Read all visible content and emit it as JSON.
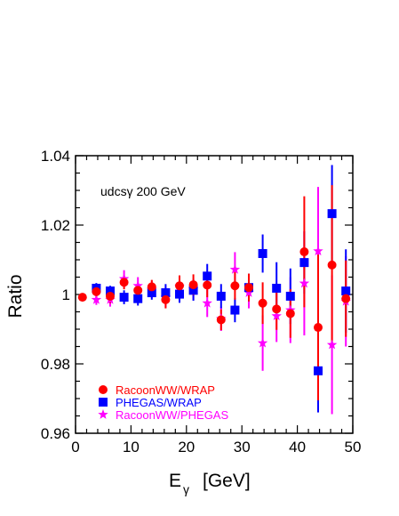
{
  "chart_data": {
    "type": "scatter",
    "title": "",
    "annotation": "udcsγ  200 GeV",
    "xlabel": {
      "main": "E",
      "sub": "γ",
      "unit": "[GeV]"
    },
    "ylabel": "Ratio",
    "xlim": [
      0,
      50
    ],
    "ylim": [
      0.96,
      1.04
    ],
    "xticks": [
      0,
      10,
      20,
      30,
      40,
      50
    ],
    "xtick_labels": [
      "0",
      "10",
      "20",
      "30",
      "40",
      "50"
    ],
    "yticks": [
      0.96,
      0.98,
      1.0,
      1.02,
      1.04
    ],
    "ytick_labels": [
      "0.96",
      "0.98",
      "1",
      "1.02",
      "1.04"
    ],
    "grid": false,
    "legend_position": "bottom-left",
    "series": [
      {
        "name": "RacoonWW/WRAP",
        "marker": "circle",
        "color": "#ff0000",
        "x": [
          1.25,
          3.75,
          6.25,
          8.75,
          11.25,
          13.75,
          16.25,
          18.75,
          21.25,
          23.75,
          26.25,
          28.75,
          31.25,
          33.75,
          36.25,
          38.75,
          41.25,
          43.75,
          46.25,
          48.75
        ],
        "y": [
          0.9992,
          1.0008,
          0.9995,
          1.0035,
          1.0012,
          1.0022,
          0.9985,
          1.0025,
          1.0028,
          1.0027,
          0.9927,
          1.0025,
          1.002,
          0.9975,
          0.9958,
          0.9945,
          1.0123,
          0.9905,
          1.0085,
          0.9988
        ],
        "err": [
          0.0005,
          0.0015,
          0.002,
          0.002,
          0.002,
          0.002,
          0.0025,
          0.003,
          0.003,
          0.0035,
          0.003,
          0.004,
          0.004,
          0.006,
          0.006,
          0.007,
          0.016,
          0.021,
          0.023,
          0.011
        ]
      },
      {
        "name": "PHEGAS/WRAP",
        "marker": "square",
        "color": "#0000ff",
        "x": [
          3.75,
          6.25,
          8.75,
          11.25,
          13.75,
          16.25,
          18.75,
          21.25,
          23.75,
          26.25,
          28.75,
          31.25,
          33.75,
          36.25,
          38.75,
          41.25,
          43.75,
          46.25,
          48.75
        ],
        "y": [
          1.0018,
          1.001,
          0.9992,
          0.9988,
          1.0005,
          1.0005,
          1.0001,
          1.0012,
          1.0053,
          0.9995,
          0.9955,
          1.002,
          1.0118,
          1.0018,
          0.9995,
          1.0092,
          0.978,
          1.0233,
          1.001
        ],
        "err": [
          0.0015,
          0.0015,
          0.002,
          0.002,
          0.002,
          0.0025,
          0.0025,
          0.003,
          0.0035,
          0.0035,
          0.0035,
          0.004,
          0.0055,
          0.0075,
          0.008,
          0.009,
          0.012,
          0.014,
          0.012
        ]
      },
      {
        "name": "RacoonWW/PHEGAS",
        "marker": "star",
        "color": "#ff00ff",
        "x": [
          3.75,
          6.25,
          8.75,
          11.25,
          13.75,
          16.25,
          18.75,
          21.25,
          23.75,
          26.25,
          28.75,
          31.25,
          33.75,
          36.25,
          38.75,
          41.25,
          43.75,
          46.25,
          48.75
        ],
        "y": [
          0.9985,
          0.9985,
          1.0045,
          1.0025,
          1.0015,
          0.9992,
          1.0022,
          1.0015,
          0.9975,
          0.993,
          1.0072,
          1.0005,
          0.986,
          0.9938,
          0.9955,
          1.0032,
          1.0125,
          0.9855,
          0.998
        ],
        "err": [
          0.0015,
          0.002,
          0.0025,
          0.0025,
          0.0025,
          0.003,
          0.003,
          0.003,
          0.004,
          0.0035,
          0.005,
          0.0045,
          0.008,
          0.0075,
          0.0095,
          0.015,
          0.0185,
          0.02,
          0.013
        ]
      }
    ]
  }
}
